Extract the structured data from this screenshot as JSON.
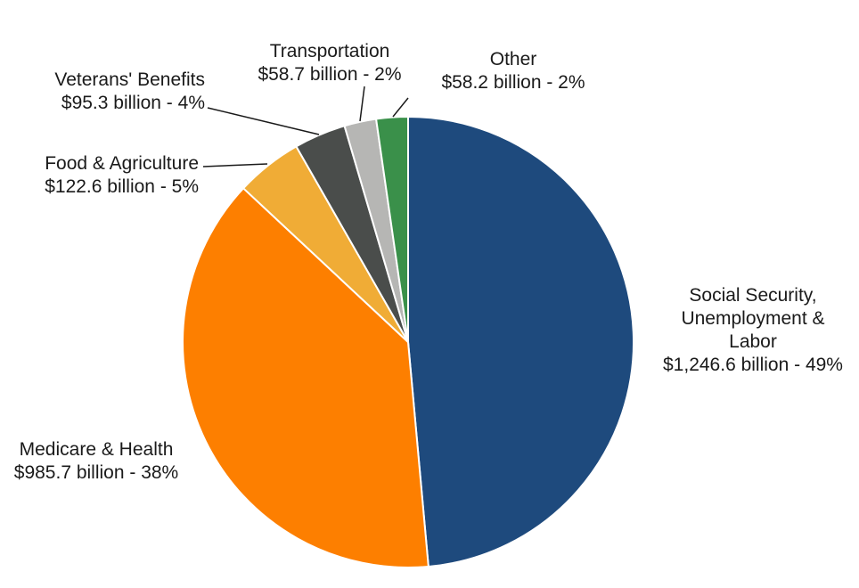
{
  "chart_data": {
    "type": "pie",
    "title": "",
    "start_angle_deg": 0,
    "direction": "clockwise",
    "slices": [
      {
        "label_lines": [
          "Social Security,",
          "Unemployment &",
          "Labor"
        ],
        "value_label": "$1,246.6 billion - 49%",
        "value": 1246.6,
        "percent": 49,
        "color": "#1e4a7d"
      },
      {
        "label_lines": [
          "Medicare & Health"
        ],
        "value_label": "$985.7 billion - 38%",
        "value": 985.7,
        "percent": 38,
        "color": "#fd7f00"
      },
      {
        "label_lines": [
          "Food & Agriculture"
        ],
        "value_label": "$122.6 billion - 5%",
        "value": 122.6,
        "percent": 5,
        "color": "#f0ac36"
      },
      {
        "label_lines": [
          "Veterans' Benefits"
        ],
        "value_label": "$95.3 billion - 4%",
        "value": 95.3,
        "percent": 4,
        "color": "#4a4d4b"
      },
      {
        "label_lines": [
          "Transportation"
        ],
        "value_label": "$58.7 billion - 2%",
        "value": 58.7,
        "percent": 2,
        "color": "#b6b6b4"
      },
      {
        "label_lines": [
          "Other"
        ],
        "value_label": "$58.2 billion - 2%",
        "value": 58.2,
        "percent": 2,
        "color": "#3a904a"
      }
    ]
  }
}
